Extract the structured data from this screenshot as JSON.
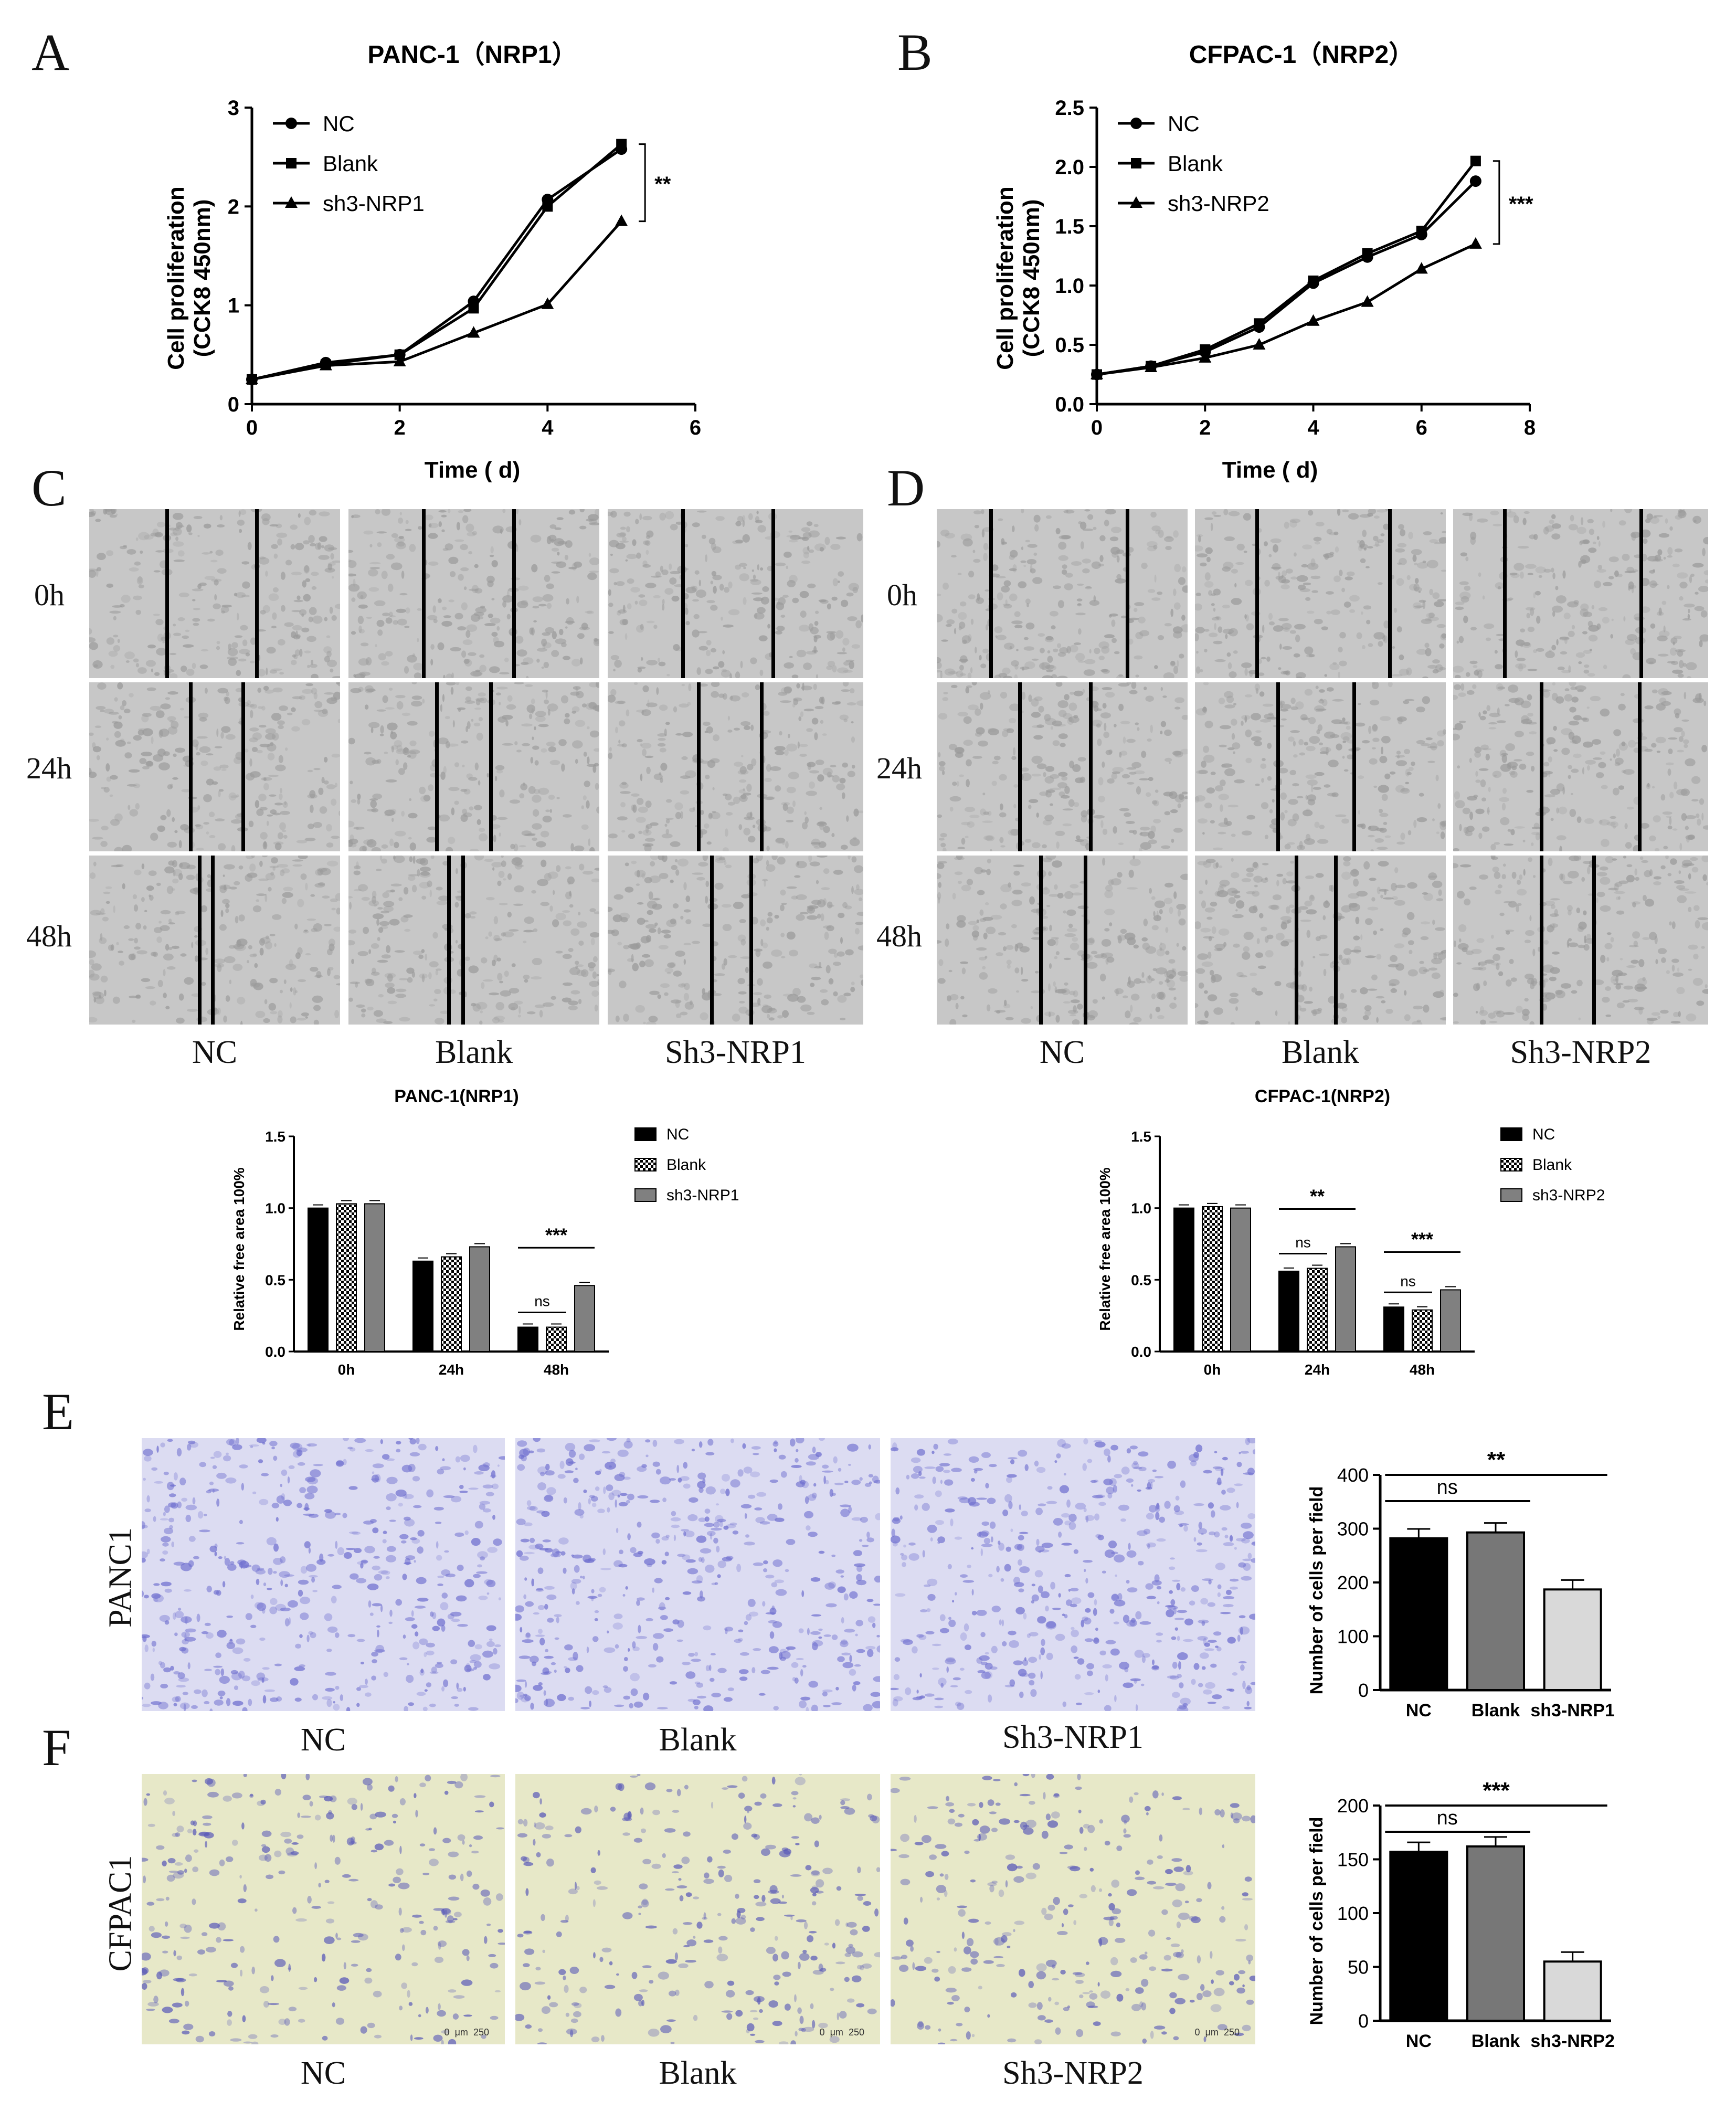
{
  "panels": {
    "A": {
      "letter": "A",
      "title": "PANC-1（NRP1）",
      "ylabel": "Cell proliferation",
      "ylabel2": "(CCK8 450nm)",
      "xlabel": "Time ( d)",
      "significance": "**"
    },
    "B": {
      "letter": "B",
      "title": "CFPAC-1（NRP2）",
      "ylabel": "Cell proliferation",
      "ylabel2": "(CCK8 450nm)",
      "xlabel": "Time ( d)",
      "significance": "***"
    },
    "C": {
      "letter": "C",
      "rows": [
        "0h",
        "24h",
        "48h"
      ],
      "cols": [
        "NC",
        "Blank",
        "Sh3-NRP1"
      ],
      "bar_title": "PANC-1(NRP1)",
      "bar_ylabel": "Relative free area 100%"
    },
    "D": {
      "letter": "D",
      "rows": [
        "0h",
        "24h",
        "48h"
      ],
      "cols": [
        "NC",
        "Blank",
        "Sh3-NRP2"
      ],
      "bar_title": "CFPAC-1(NRP2)",
      "bar_ylabel": "Relative free area 100%"
    },
    "E": {
      "letter": "E",
      "side": "PANC1",
      "cols": [
        "NC",
        "Blank",
        "Sh3-NRP1"
      ],
      "bar_ylabel": "Number of cells per field"
    },
    "F": {
      "letter": "F",
      "side": "CFPAC1",
      "cols": [
        "NC",
        "Blank",
        "Sh3-NRP2"
      ],
      "bar_ylabel": "Number of cells per field",
      "scale_bar": [
        "0",
        "μm",
        "250"
      ]
    }
  },
  "colors": {
    "black": "#000000",
    "dark_gray": "#777777",
    "light_gray": "#d9d9d9",
    "crystal_violet": "#6f6fcf"
  },
  "chart_data": [
    {
      "id": "A",
      "type": "line",
      "title": "PANC-1（NRP1）",
      "xlabel": "Time ( d)",
      "ylabel": "Cell proliferation (CCK8 450nm)",
      "xlim": [
        0,
        6
      ],
      "ylim": [
        0,
        3
      ],
      "xticks": [
        0,
        2,
        4,
        6
      ],
      "yticks": [
        0,
        1,
        2,
        3
      ],
      "legend": "top-left",
      "series": [
        {
          "name": "NC",
          "marker": "circle",
          "x": [
            0,
            1,
            2,
            3,
            4,
            5
          ],
          "y": [
            0.25,
            0.42,
            0.5,
            1.04,
            2.07,
            2.58
          ]
        },
        {
          "name": "Blank",
          "marker": "square",
          "x": [
            0,
            1,
            2,
            3,
            4,
            5
          ],
          "y": [
            0.25,
            0.4,
            0.5,
            0.97,
            2.0,
            2.63
          ]
        },
        {
          "name": "sh3-NRP1",
          "marker": "triangle",
          "x": [
            0,
            1,
            2,
            3,
            4,
            5
          ],
          "y": [
            0.25,
            0.39,
            0.43,
            0.72,
            1.01,
            1.85
          ]
        }
      ],
      "annotation": "**"
    },
    {
      "id": "B",
      "type": "line",
      "title": "CFPAC-1（NRP2）",
      "xlabel": "Time ( d)",
      "ylabel": "Cell proliferation (CCK8 450nm)",
      "xlim": [
        0,
        8
      ],
      "ylim": [
        0,
        2.5
      ],
      "xticks": [
        0,
        2,
        4,
        6,
        8
      ],
      "yticks": [
        0.0,
        0.5,
        1.0,
        1.5,
        2.0,
        2.5
      ],
      "legend": "top-left",
      "series": [
        {
          "name": "NC",
          "marker": "circle",
          "x": [
            0,
            1,
            2,
            3,
            4,
            5,
            6,
            7
          ],
          "y": [
            0.25,
            0.32,
            0.44,
            0.65,
            1.02,
            1.24,
            1.43,
            1.88
          ]
        },
        {
          "name": "Blank",
          "marker": "square",
          "x": [
            0,
            1,
            2,
            3,
            4,
            5,
            6,
            7
          ],
          "y": [
            0.25,
            0.32,
            0.46,
            0.68,
            1.04,
            1.27,
            1.46,
            2.05
          ]
        },
        {
          "name": "sh3-NRP2",
          "marker": "triangle",
          "x": [
            0,
            1,
            2,
            3,
            4,
            5,
            6,
            7
          ],
          "y": [
            0.25,
            0.31,
            0.39,
            0.5,
            0.7,
            0.86,
            1.14,
            1.35
          ]
        }
      ],
      "annotation": "***"
    },
    {
      "id": "C",
      "type": "bar",
      "title": "PANC-1(NRP1)",
      "ylabel": "Relative free area 100%",
      "categories": [
        "0h",
        "24h",
        "48h"
      ],
      "ylim": [
        0,
        1.5
      ],
      "yticks": [
        0.0,
        0.5,
        1.0,
        1.5
      ],
      "legend": "top-right",
      "series": [
        {
          "name": "NC",
          "values": [
            1.0,
            0.63,
            0.17
          ]
        },
        {
          "name": "Blank",
          "values": [
            1.03,
            0.66,
            0.17
          ]
        },
        {
          "name": "sh3-NRP1",
          "values": [
            1.03,
            0.73,
            0.46
          ]
        }
      ],
      "annotations": [
        {
          "category": "48h",
          "label": "ns",
          "between": [
            "NC",
            "Blank"
          ]
        },
        {
          "category": "48h",
          "label": "***",
          "between": [
            "NC",
            "sh3-NRP1"
          ]
        }
      ]
    },
    {
      "id": "D",
      "type": "bar",
      "title": "CFPAC-1(NRP2)",
      "ylabel": "Relative free area 100%",
      "categories": [
        "0h",
        "24h",
        "48h"
      ],
      "ylim": [
        0,
        1.5
      ],
      "yticks": [
        0.0,
        0.5,
        1.0,
        1.5
      ],
      "legend": "top-right",
      "series": [
        {
          "name": "NC",
          "values": [
            1.0,
            0.56,
            0.31
          ]
        },
        {
          "name": "Blank",
          "values": [
            1.01,
            0.58,
            0.29
          ]
        },
        {
          "name": "sh3-NRP2",
          "values": [
            1.0,
            0.73,
            0.43
          ]
        }
      ],
      "annotations": [
        {
          "category": "24h",
          "label": "ns",
          "between": [
            "NC",
            "Blank"
          ]
        },
        {
          "category": "24h",
          "label": "**",
          "between": [
            "NC",
            "sh3-NRP2"
          ]
        },
        {
          "category": "48h",
          "label": "ns",
          "between": [
            "NC",
            "Blank"
          ]
        },
        {
          "category": "48h",
          "label": "***",
          "between": [
            "NC",
            "sh3-NRP2"
          ]
        }
      ]
    },
    {
      "id": "E",
      "type": "bar",
      "ylabel": "Number of cells per field",
      "categories": [
        "NC",
        "Blank",
        "sh3-NRP1"
      ],
      "values": [
        282,
        293,
        187
      ],
      "ylim": [
        0,
        400
      ],
      "yticks": [
        0,
        100,
        200,
        300,
        400
      ],
      "annotations": [
        {
          "label": "ns",
          "between": [
            "NC",
            "Blank"
          ]
        },
        {
          "label": "**",
          "between": [
            "NC",
            "sh3-NRP1"
          ]
        }
      ]
    },
    {
      "id": "F",
      "type": "bar",
      "ylabel": "Number of cells per field",
      "categories": [
        "NC",
        "Blank",
        "sh3-NRP2"
      ],
      "values": [
        157,
        162,
        55
      ],
      "ylim": [
        0,
        200
      ],
      "yticks": [
        0,
        50,
        100,
        150,
        200
      ],
      "annotations": [
        {
          "label": "ns",
          "between": [
            "NC",
            "Blank"
          ]
        },
        {
          "label": "***",
          "between": [
            "NC",
            "sh3-NRP2"
          ]
        }
      ]
    }
  ]
}
